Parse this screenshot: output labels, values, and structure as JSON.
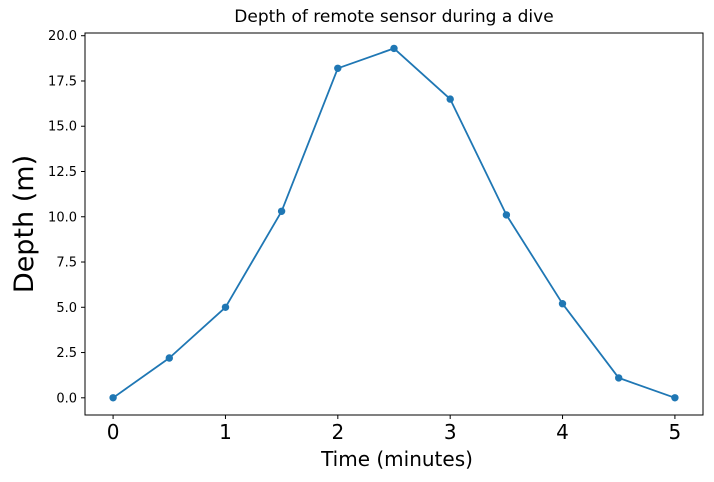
{
  "chart_data": {
    "type": "line",
    "title": "Depth of remote sensor during a dive",
    "xlabel": "Time (minutes)",
    "ylabel": "Depth (m)",
    "x": [
      0,
      0.5,
      1,
      1.5,
      2,
      2.5,
      3,
      3.5,
      4,
      4.5,
      5
    ],
    "y": [
      0.0,
      2.2,
      5.0,
      10.3,
      18.2,
      19.3,
      16.5,
      10.1,
      5.2,
      1.1,
      0.0
    ],
    "xlim": [
      -0.25,
      5.25
    ],
    "ylim": [
      -0.95,
      20.15
    ],
    "xticks": [
      0,
      1,
      2,
      3,
      4,
      5
    ],
    "xtick_labels": [
      "0",
      "1",
      "2",
      "3",
      "4",
      "5"
    ],
    "yticks": [
      0.0,
      2.5,
      5.0,
      7.5,
      10.0,
      12.5,
      15.0,
      17.5,
      20.0
    ],
    "ytick_labels": [
      "0.0",
      "2.5",
      "5.0",
      "7.5",
      "10.0",
      "12.5",
      "15.0",
      "17.5",
      "20.0"
    ],
    "line_color": "#1f77b4",
    "marker": "circle",
    "marker_color": "#1f77b4",
    "axis_color": "#000000",
    "background_color": "#ffffff",
    "grid": false,
    "legend": "none"
  }
}
